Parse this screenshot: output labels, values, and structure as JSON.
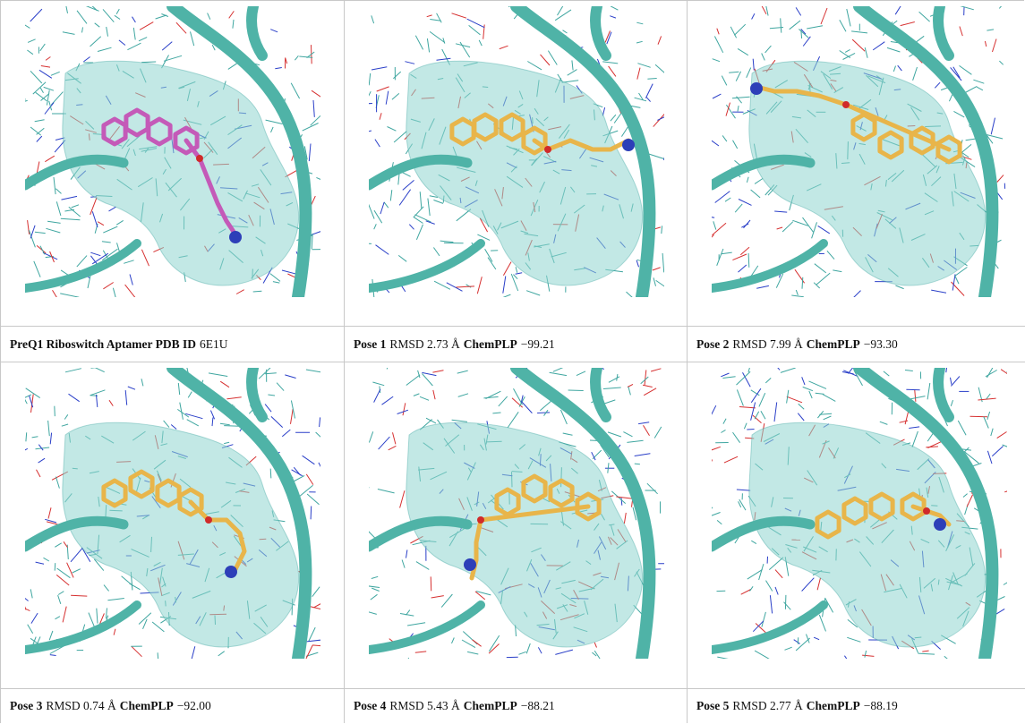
{
  "panels": [
    {
      "caption": [
        {
          "text": "PreQ1 Riboswitch Aptamer PDB ID",
          "bold": true
        },
        {
          "text": "6E1U",
          "bold": false
        }
      ],
      "ligand_color": "#c45ab8",
      "pose": "reference"
    },
    {
      "caption": [
        {
          "text": "Pose 1",
          "bold": true
        },
        {
          "text": "RMSD 2.73 Å",
          "bold": false
        },
        {
          "text": "ChemPLP",
          "bold": true
        },
        {
          "text": "−99.21",
          "bold": false
        }
      ],
      "ligand_color": "#e8b54a",
      "pose": "p1"
    },
    {
      "caption": [
        {
          "text": "Pose 2",
          "bold": true
        },
        {
          "text": "RMSD 7.99 Å",
          "bold": false
        },
        {
          "text": "ChemPLP",
          "bold": true
        },
        {
          "text": "−93.30",
          "bold": false
        }
      ],
      "ligand_color": "#e8b54a",
      "pose": "p2"
    },
    {
      "caption": [
        {
          "text": "Pose 3",
          "bold": true
        },
        {
          "text": "RMSD 0.74 Å",
          "bold": false
        },
        {
          "text": "ChemPLP",
          "bold": true
        },
        {
          "text": "−92.00",
          "bold": false
        }
      ],
      "ligand_color": "#e8b54a",
      "pose": "p3"
    },
    {
      "caption": [
        {
          "text": "Pose 4",
          "bold": true
        },
        {
          "text": "RMSD 5.43 Å",
          "bold": false
        },
        {
          "text": "ChemPLP",
          "bold": true
        },
        {
          "text": "−88.21",
          "bold": false
        }
      ],
      "ligand_color": "#e8b54a",
      "pose": "p4"
    },
    {
      "caption": [
        {
          "text": "Pose 5",
          "bold": true
        },
        {
          "text": "RMSD 2.77 Å",
          "bold": false
        },
        {
          "text": "ChemPLP",
          "bold": true
        },
        {
          "text": "−88.19",
          "bold": false
        }
      ],
      "ligand_color": "#e8b54a",
      "pose": "p5"
    }
  ],
  "colors": {
    "ribbon": "#4fb3a7",
    "pocket": "#8fd6d0",
    "wire_cyan": "#3fa6a0",
    "wire_blue": "#2a3fc8",
    "wire_red": "#d63030",
    "nitrogen": "#2d3fb8",
    "oxygen": "#d02a2a"
  }
}
